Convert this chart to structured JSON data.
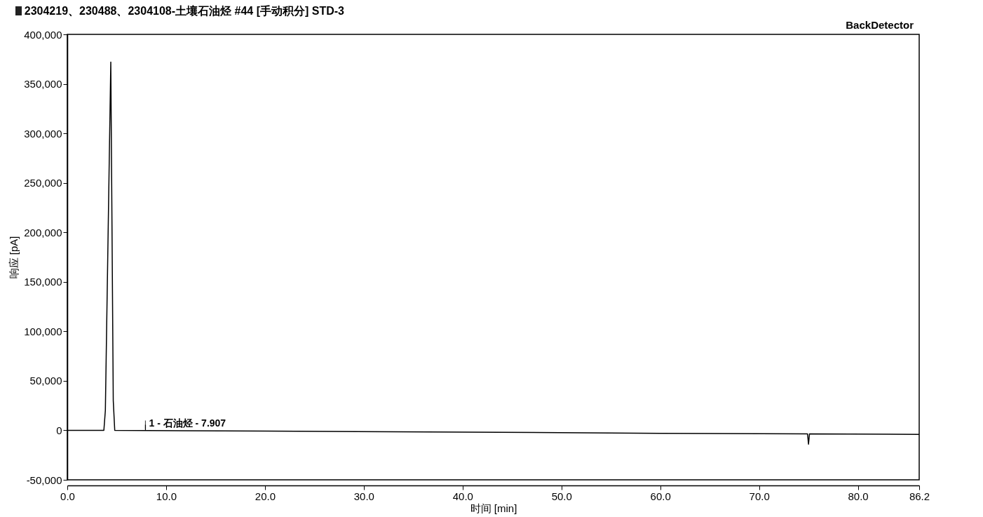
{
  "chart_data": {
    "type": "line",
    "title": "2304219、230488、2304108-土壤石油烃 #44 [手动积分] STD-3",
    "subtitle": "BackDetector",
    "xlabel": "时间 [min]",
    "ylabel": "响应 [pA]",
    "x": [
      0,
      3.7,
      3.85,
      4.4,
      4.65,
      4.8,
      20,
      40,
      60,
      74.9,
      75.0,
      75.1,
      86.2
    ],
    "series": [
      {
        "color": "#000000",
        "values": [
          0,
          0,
          20000,
          372000,
          30000,
          0,
          -800,
          -1800,
          -3000,
          -3500,
          -14000,
          -3500,
          -4200
        ]
      }
    ],
    "xlim": [
      0,
      86.2
    ],
    "ylim": [
      -50000,
      400000
    ],
    "xticks": [
      {
        "value": 0,
        "label": "0.0"
      },
      {
        "value": 10,
        "label": "10.0"
      },
      {
        "value": 20,
        "label": "20.0"
      },
      {
        "value": 30,
        "label": "30.0"
      },
      {
        "value": 40,
        "label": "40.0"
      },
      {
        "value": 50,
        "label": "50.0"
      },
      {
        "value": 60,
        "label": "60.0"
      },
      {
        "value": 70,
        "label": "70.0"
      },
      {
        "value": 80,
        "label": "80.0"
      },
      {
        "value": 86.2,
        "label": "86.2"
      }
    ],
    "yticks": [
      {
        "value": -50000,
        "label": "-50,000"
      },
      {
        "value": 0,
        "label": "0"
      },
      {
        "value": 50000,
        "label": "50,000"
      },
      {
        "value": 100000,
        "label": "100,000"
      },
      {
        "value": 150000,
        "label": "150,000"
      },
      {
        "value": 200000,
        "label": "200,000"
      },
      {
        "value": 250000,
        "label": "250,000"
      },
      {
        "value": 300000,
        "label": "300,000"
      },
      {
        "value": 350000,
        "label": "350,000"
      },
      {
        "value": 400000,
        "label": "400,000"
      }
    ],
    "annotations": [
      {
        "text": "1 - 石油烃 - 7.907",
        "x": 7.907,
        "y": 0
      }
    ],
    "grid": false,
    "marker": "none",
    "line_style": "solid"
  }
}
